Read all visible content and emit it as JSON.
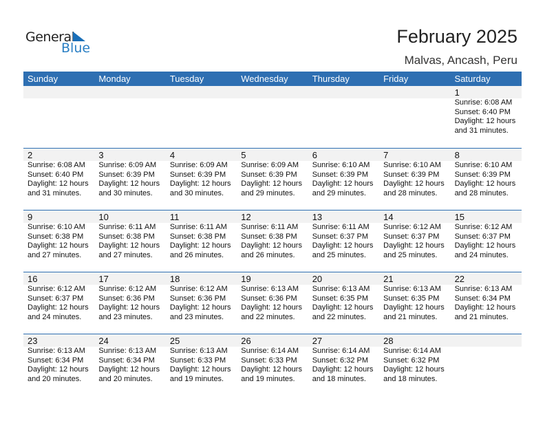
{
  "logo": {
    "line1": "General",
    "line2": "Blue"
  },
  "header": {
    "title": "February 2025",
    "location": "Malvas, Ancash, Peru"
  },
  "weekdays": [
    "Sunday",
    "Monday",
    "Tuesday",
    "Wednesday",
    "Thursday",
    "Friday",
    "Saturday"
  ],
  "colors": {
    "header_bg": "#2e6fb2",
    "day_bar": "#f2f2f2",
    "logo_blue": "#2a7fc4"
  },
  "weeks": [
    [
      null,
      null,
      null,
      null,
      null,
      null,
      {
        "day": "1",
        "sunrise": "Sunrise: 6:08 AM",
        "sunset": "Sunset: 6:40 PM",
        "daylight1": "Daylight: 12 hours",
        "daylight2": "and 31 minutes."
      }
    ],
    [
      {
        "day": "2",
        "sunrise": "Sunrise: 6:08 AM",
        "sunset": "Sunset: 6:40 PM",
        "daylight1": "Daylight: 12 hours",
        "daylight2": "and 31 minutes."
      },
      {
        "day": "3",
        "sunrise": "Sunrise: 6:09 AM",
        "sunset": "Sunset: 6:39 PM",
        "daylight1": "Daylight: 12 hours",
        "daylight2": "and 30 minutes."
      },
      {
        "day": "4",
        "sunrise": "Sunrise: 6:09 AM",
        "sunset": "Sunset: 6:39 PM",
        "daylight1": "Daylight: 12 hours",
        "daylight2": "and 30 minutes."
      },
      {
        "day": "5",
        "sunrise": "Sunrise: 6:09 AM",
        "sunset": "Sunset: 6:39 PM",
        "daylight1": "Daylight: 12 hours",
        "daylight2": "and 29 minutes."
      },
      {
        "day": "6",
        "sunrise": "Sunrise: 6:10 AM",
        "sunset": "Sunset: 6:39 PM",
        "daylight1": "Daylight: 12 hours",
        "daylight2": "and 29 minutes."
      },
      {
        "day": "7",
        "sunrise": "Sunrise: 6:10 AM",
        "sunset": "Sunset: 6:39 PM",
        "daylight1": "Daylight: 12 hours",
        "daylight2": "and 28 minutes."
      },
      {
        "day": "8",
        "sunrise": "Sunrise: 6:10 AM",
        "sunset": "Sunset: 6:39 PM",
        "daylight1": "Daylight: 12 hours",
        "daylight2": "and 28 minutes."
      }
    ],
    [
      {
        "day": "9",
        "sunrise": "Sunrise: 6:10 AM",
        "sunset": "Sunset: 6:38 PM",
        "daylight1": "Daylight: 12 hours",
        "daylight2": "and 27 minutes."
      },
      {
        "day": "10",
        "sunrise": "Sunrise: 6:11 AM",
        "sunset": "Sunset: 6:38 PM",
        "daylight1": "Daylight: 12 hours",
        "daylight2": "and 27 minutes."
      },
      {
        "day": "11",
        "sunrise": "Sunrise: 6:11 AM",
        "sunset": "Sunset: 6:38 PM",
        "daylight1": "Daylight: 12 hours",
        "daylight2": "and 26 minutes."
      },
      {
        "day": "12",
        "sunrise": "Sunrise: 6:11 AM",
        "sunset": "Sunset: 6:38 PM",
        "daylight1": "Daylight: 12 hours",
        "daylight2": "and 26 minutes."
      },
      {
        "day": "13",
        "sunrise": "Sunrise: 6:11 AM",
        "sunset": "Sunset: 6:37 PM",
        "daylight1": "Daylight: 12 hours",
        "daylight2": "and 25 minutes."
      },
      {
        "day": "14",
        "sunrise": "Sunrise: 6:12 AM",
        "sunset": "Sunset: 6:37 PM",
        "daylight1": "Daylight: 12 hours",
        "daylight2": "and 25 minutes."
      },
      {
        "day": "15",
        "sunrise": "Sunrise: 6:12 AM",
        "sunset": "Sunset: 6:37 PM",
        "daylight1": "Daylight: 12 hours",
        "daylight2": "and 24 minutes."
      }
    ],
    [
      {
        "day": "16",
        "sunrise": "Sunrise: 6:12 AM",
        "sunset": "Sunset: 6:37 PM",
        "daylight1": "Daylight: 12 hours",
        "daylight2": "and 24 minutes."
      },
      {
        "day": "17",
        "sunrise": "Sunrise: 6:12 AM",
        "sunset": "Sunset: 6:36 PM",
        "daylight1": "Daylight: 12 hours",
        "daylight2": "and 23 minutes."
      },
      {
        "day": "18",
        "sunrise": "Sunrise: 6:12 AM",
        "sunset": "Sunset: 6:36 PM",
        "daylight1": "Daylight: 12 hours",
        "daylight2": "and 23 minutes."
      },
      {
        "day": "19",
        "sunrise": "Sunrise: 6:13 AM",
        "sunset": "Sunset: 6:36 PM",
        "daylight1": "Daylight: 12 hours",
        "daylight2": "and 22 minutes."
      },
      {
        "day": "20",
        "sunrise": "Sunrise: 6:13 AM",
        "sunset": "Sunset: 6:35 PM",
        "daylight1": "Daylight: 12 hours",
        "daylight2": "and 22 minutes."
      },
      {
        "day": "21",
        "sunrise": "Sunrise: 6:13 AM",
        "sunset": "Sunset: 6:35 PM",
        "daylight1": "Daylight: 12 hours",
        "daylight2": "and 21 minutes."
      },
      {
        "day": "22",
        "sunrise": "Sunrise: 6:13 AM",
        "sunset": "Sunset: 6:34 PM",
        "daylight1": "Daylight: 12 hours",
        "daylight2": "and 21 minutes."
      }
    ],
    [
      {
        "day": "23",
        "sunrise": "Sunrise: 6:13 AM",
        "sunset": "Sunset: 6:34 PM",
        "daylight1": "Daylight: 12 hours",
        "daylight2": "and 20 minutes."
      },
      {
        "day": "24",
        "sunrise": "Sunrise: 6:13 AM",
        "sunset": "Sunset: 6:34 PM",
        "daylight1": "Daylight: 12 hours",
        "daylight2": "and 20 minutes."
      },
      {
        "day": "25",
        "sunrise": "Sunrise: 6:13 AM",
        "sunset": "Sunset: 6:33 PM",
        "daylight1": "Daylight: 12 hours",
        "daylight2": "and 19 minutes."
      },
      {
        "day": "26",
        "sunrise": "Sunrise: 6:14 AM",
        "sunset": "Sunset: 6:33 PM",
        "daylight1": "Daylight: 12 hours",
        "daylight2": "and 19 minutes."
      },
      {
        "day": "27",
        "sunrise": "Sunrise: 6:14 AM",
        "sunset": "Sunset: 6:32 PM",
        "daylight1": "Daylight: 12 hours",
        "daylight2": "and 18 minutes."
      },
      {
        "day": "28",
        "sunrise": "Sunrise: 6:14 AM",
        "sunset": "Sunset: 6:32 PM",
        "daylight1": "Daylight: 12 hours",
        "daylight2": "and 18 minutes."
      },
      null
    ]
  ]
}
